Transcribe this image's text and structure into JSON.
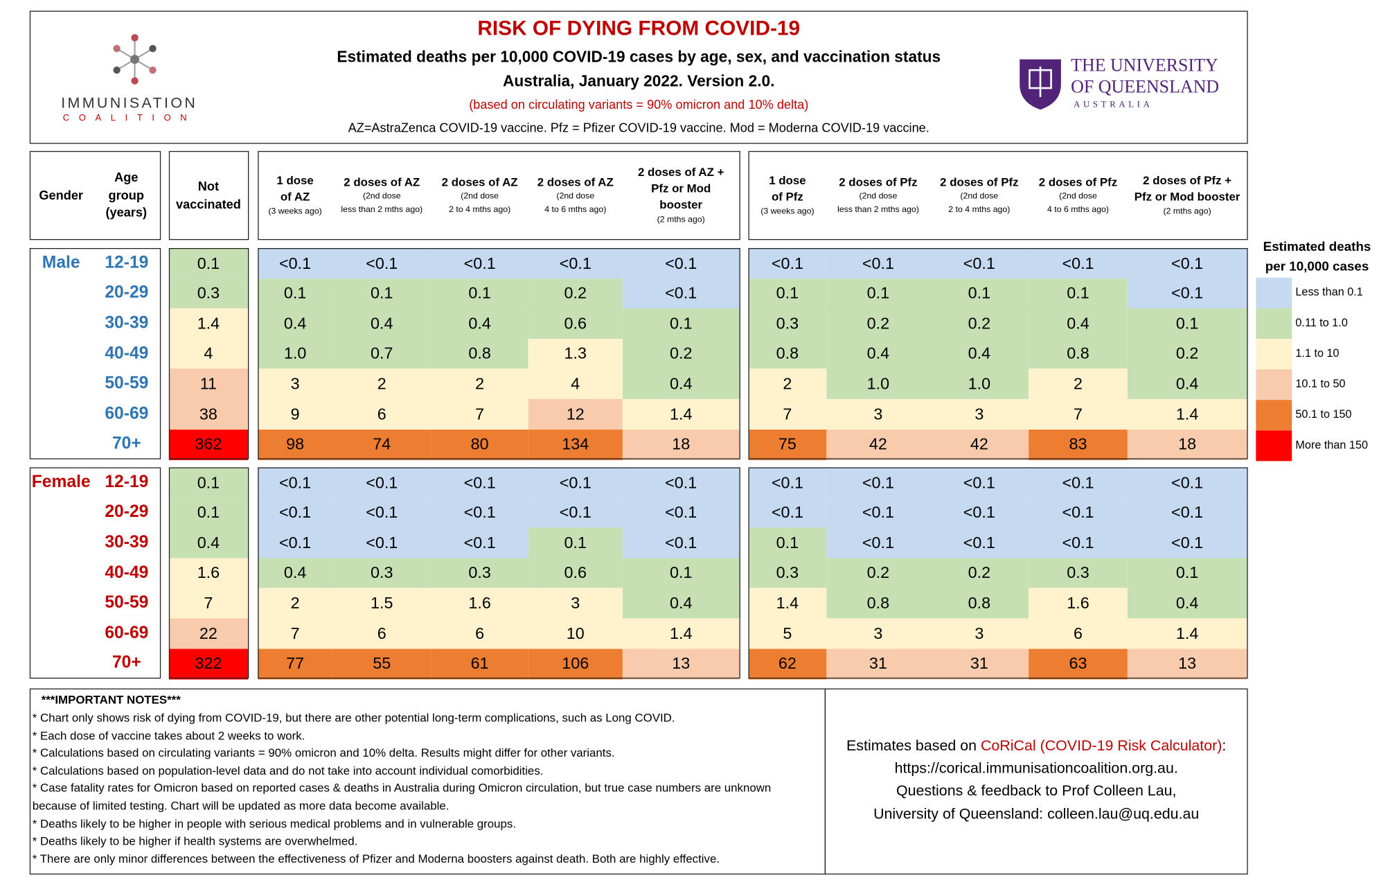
{
  "header": {
    "title": "RISK OF DYING FROM COVID-19",
    "subtitle": "Estimated deaths per 10,000 COVID-19 cases by age, sex, and vaccination status",
    "subtitle2": "Australia, January 2022.  Version 2.0.",
    "note": "(based on circulating variants = 90% omicron and 10% delta)",
    "abbreviations": "AZ=AstraZenca COVID-19 vaccine.  Pfz = Pfizer COVID-19 vaccine. Mod = Moderna COVID-19 vaccine.",
    "left_logo": {
      "name": "IMMUNISATION",
      "sub": "COALITION"
    },
    "right_logo": {
      "line1": "THE UNIVERSITY",
      "line2": "OF QUEENSLAND",
      "sub": "AUSTRALIA"
    }
  },
  "table": {
    "gender_header": "Gender",
    "age_header": [
      "Age",
      "group",
      "(years)"
    ],
    "unvax_header": [
      "Not",
      "vaccinated"
    ],
    "az_columns": [
      {
        "lines": [
          "1 dose",
          "of AZ"
        ],
        "sub": [
          "(3 weeks ago)"
        ]
      },
      {
        "lines": [
          "2 doses of AZ"
        ],
        "sub": [
          "(2nd dose",
          "less than 2 mths ago)"
        ]
      },
      {
        "lines": [
          "2 doses of AZ"
        ],
        "sub": [
          "(2nd dose",
          "2 to 4 mths ago)"
        ]
      },
      {
        "lines": [
          "2 doses of AZ"
        ],
        "sub": [
          "(2nd dose",
          "4 to 6 mths ago)"
        ]
      },
      {
        "lines": [
          "2 doses of AZ +",
          "Pfz or Mod",
          "booster"
        ],
        "sub": [
          "(2 mths ago)"
        ]
      }
    ],
    "pfz_columns": [
      {
        "lines": [
          "1 dose",
          "of Pfz"
        ],
        "sub": [
          "(3 weeks ago)"
        ]
      },
      {
        "lines": [
          "2 doses of Pfz"
        ],
        "sub": [
          "(2nd dose",
          "less than 2 mths ago)"
        ]
      },
      {
        "lines": [
          "2 doses of Pfz"
        ],
        "sub": [
          "(2nd dose",
          "2 to 4 mths ago)"
        ]
      },
      {
        "lines": [
          "2 doses of Pfz"
        ],
        "sub": [
          "(2nd dose",
          "4 to 6 mths ago)"
        ]
      },
      {
        "lines": [
          "2 doses of Pfz +",
          "Pfz or Mod booster"
        ],
        "sub": [
          "(2 mths ago)"
        ]
      }
    ],
    "groups": [
      {
        "gender": "Male",
        "color": "#2e75b6",
        "rows": [
          {
            "age": "12-19",
            "values": [
              "0.1",
              "<0.1",
              "<0.1",
              "<0.1",
              "<0.1",
              "<0.1",
              "<0.1",
              "<0.1",
              "<0.1",
              "<0.1",
              "<0.1"
            ],
            "colors": [
              "#c6e0b4",
              "#c5d9f1",
              "#c5d9f1",
              "#c5d9f1",
              "#c5d9f1",
              "#c5d9f1",
              "#c5d9f1",
              "#c5d9f1",
              "#c5d9f1",
              "#c5d9f1",
              "#c5d9f1"
            ]
          },
          {
            "age": "20-29",
            "values": [
              "0.3",
              "0.1",
              "0.1",
              "0.1",
              "0.2",
              "<0.1",
              "0.1",
              "0.1",
              "0.1",
              "0.1",
              "<0.1"
            ],
            "colors": [
              "#c6e0b4",
              "#c6e0b4",
              "#c6e0b4",
              "#c6e0b4",
              "#c6e0b4",
              "#c5d9f1",
              "#c6e0b4",
              "#c6e0b4",
              "#c6e0b4",
              "#c6e0b4",
              "#c5d9f1"
            ]
          },
          {
            "age": "30-39",
            "values": [
              "1.4",
              "0.4",
              "0.4",
              "0.4",
              "0.6",
              "0.1",
              "0.3",
              "0.2",
              "0.2",
              "0.4",
              "0.1"
            ],
            "colors": [
              "#fff2cc",
              "#c6e0b4",
              "#c6e0b4",
              "#c6e0b4",
              "#c6e0b4",
              "#c6e0b4",
              "#c6e0b4",
              "#c6e0b4",
              "#c6e0b4",
              "#c6e0b4",
              "#c6e0b4"
            ]
          },
          {
            "age": "40-49",
            "values": [
              "4",
              "1.0",
              "0.7",
              "0.8",
              "1.3",
              "0.2",
              "0.8",
              "0.4",
              "0.4",
              "0.8",
              "0.2"
            ],
            "colors": [
              "#fff2cc",
              "#c6e0b4",
              "#c6e0b4",
              "#c6e0b4",
              "#fff2cc",
              "#c6e0b4",
              "#c6e0b4",
              "#c6e0b4",
              "#c6e0b4",
              "#c6e0b4",
              "#c6e0b4"
            ]
          },
          {
            "age": "50-59",
            "values": [
              "11",
              "3",
              "2",
              "2",
              "4",
              "0.4",
              "2",
              "1.0",
              "1.0",
              "2",
              "0.4"
            ],
            "colors": [
              "#f8cbad",
              "#fff2cc",
              "#fff2cc",
              "#fff2cc",
              "#fff2cc",
              "#c6e0b4",
              "#fff2cc",
              "#c6e0b4",
              "#c6e0b4",
              "#fff2cc",
              "#c6e0b4"
            ]
          },
          {
            "age": "60-69",
            "values": [
              "38",
              "9",
              "6",
              "7",
              "12",
              "1.4",
              "7",
              "3",
              "3",
              "7",
              "1.4"
            ],
            "colors": [
              "#f8cbad",
              "#fff2cc",
              "#fff2cc",
              "#fff2cc",
              "#f8cbad",
              "#fff2cc",
              "#fff2cc",
              "#fff2cc",
              "#fff2cc",
              "#fff2cc",
              "#fff2cc"
            ]
          },
          {
            "age": "70+",
            "values": [
              "362",
              "98",
              "74",
              "80",
              "134",
              "18",
              "75",
              "42",
              "42",
              "83",
              "18"
            ],
            "colors": [
              "#ff0000",
              "#ed7d31",
              "#ed7d31",
              "#ed7d31",
              "#ed7d31",
              "#f8cbad",
              "#ed7d31",
              "#f8cbad",
              "#f8cbad",
              "#ed7d31",
              "#f8cbad"
            ]
          }
        ]
      },
      {
        "gender": "Female",
        "color": "#c00000",
        "rows": [
          {
            "age": "12-19",
            "values": [
              "0.1",
              "<0.1",
              "<0.1",
              "<0.1",
              "<0.1",
              "<0.1",
              "<0.1",
              "<0.1",
              "<0.1",
              "<0.1",
              "<0.1"
            ],
            "colors": [
              "#c6e0b4",
              "#c5d9f1",
              "#c5d9f1",
              "#c5d9f1",
              "#c5d9f1",
              "#c5d9f1",
              "#c5d9f1",
              "#c5d9f1",
              "#c5d9f1",
              "#c5d9f1",
              "#c5d9f1"
            ]
          },
          {
            "age": "20-29",
            "values": [
              "0.1",
              "<0.1",
              "<0.1",
              "<0.1",
              "<0.1",
              "<0.1",
              "<0.1",
              "<0.1",
              "<0.1",
              "<0.1",
              "<0.1"
            ],
            "colors": [
              "#c6e0b4",
              "#c5d9f1",
              "#c5d9f1",
              "#c5d9f1",
              "#c5d9f1",
              "#c5d9f1",
              "#c5d9f1",
              "#c5d9f1",
              "#c5d9f1",
              "#c5d9f1",
              "#c5d9f1"
            ]
          },
          {
            "age": "30-39",
            "values": [
              "0.4",
              "<0.1",
              "<0.1",
              "<0.1",
              "0.1",
              "<0.1",
              "0.1",
              "<0.1",
              "<0.1",
              "<0.1",
              "<0.1"
            ],
            "colors": [
              "#c6e0b4",
              "#c5d9f1",
              "#c5d9f1",
              "#c5d9f1",
              "#c6e0b4",
              "#c5d9f1",
              "#c6e0b4",
              "#c5d9f1",
              "#c5d9f1",
              "#c5d9f1",
              "#c5d9f1"
            ]
          },
          {
            "age": "40-49",
            "values": [
              "1.6",
              "0.4",
              "0.3",
              "0.3",
              "0.6",
              "0.1",
              "0.3",
              "0.2",
              "0.2",
              "0.3",
              "0.1"
            ],
            "colors": [
              "#fff2cc",
              "#c6e0b4",
              "#c6e0b4",
              "#c6e0b4",
              "#c6e0b4",
              "#c6e0b4",
              "#c6e0b4",
              "#c6e0b4",
              "#c6e0b4",
              "#c6e0b4",
              "#c6e0b4"
            ]
          },
          {
            "age": "50-59",
            "values": [
              "7",
              "2",
              "1.5",
              "1.6",
              "3",
              "0.4",
              "1.4",
              "0.8",
              "0.8",
              "1.6",
              "0.4"
            ],
            "colors": [
              "#fff2cc",
              "#fff2cc",
              "#fff2cc",
              "#fff2cc",
              "#fff2cc",
              "#c6e0b4",
              "#fff2cc",
              "#c6e0b4",
              "#c6e0b4",
              "#fff2cc",
              "#c6e0b4"
            ]
          },
          {
            "age": "60-69",
            "values": [
              "22",
              "7",
              "6",
              "6",
              "10",
              "1.4",
              "5",
              "3",
              "3",
              "6",
              "1.4"
            ],
            "colors": [
              "#f8cbad",
              "#fff2cc",
              "#fff2cc",
              "#fff2cc",
              "#fff2cc",
              "#fff2cc",
              "#fff2cc",
              "#fff2cc",
              "#fff2cc",
              "#fff2cc",
              "#fff2cc"
            ]
          },
          {
            "age": "70+",
            "values": [
              "322",
              "77",
              "55",
              "61",
              "106",
              "13",
              "62",
              "31",
              "31",
              "63",
              "13"
            ],
            "colors": [
              "#ff0000",
              "#ed7d31",
              "#ed7d31",
              "#ed7d31",
              "#ed7d31",
              "#f8cbad",
              "#ed7d31",
              "#f8cbad",
              "#f8cbad",
              "#ed7d31",
              "#f8cbad"
            ]
          }
        ]
      }
    ]
  },
  "legend": {
    "title": [
      "Estimated deaths",
      "per 10,000 cases"
    ],
    "items": [
      {
        "label": "Less than 0.1",
        "color": "#c5d9f1"
      },
      {
        "label": "0.11 to 1.0",
        "color": "#c6e0b4"
      },
      {
        "label": "1.1 to 10",
        "color": "#fff2cc"
      },
      {
        "label": "10.1 to 50",
        "color": "#f8cbad"
      },
      {
        "label": "50.1 to 150",
        "color": "#ed7d31"
      },
      {
        "label": "More than 150",
        "color": "#ff0000"
      }
    ]
  },
  "notes": {
    "title": "***IMPORTANT NOTES***",
    "lines": [
      "* Chart only shows risk of dying from COVID-19, but there are other potential long-term complications, such as Long COVID.",
      "* Each dose of vaccine takes about 2 weeks to work.",
      "* Calculations based on circulating variants = 90% omicron and 10% delta. Results might differ for other variants.",
      "* Calculations based on population-level data and do not take into account individual comorbidities.",
      "* Case fatality rates for Omicron based on reported cases & deaths in Australia during Omicron circulation, but true case numbers are unknown",
      "because of limited testing.  Chart will be updated as more data become available.",
      "* Deaths likely to be higher in people with serious medical problems and in vulnerable groups.",
      "* Deaths likely to be higher if health systems are overwhelmed.",
      "* There are only minor differences between the effectiveness of Pfizer and Moderna boosters against death. Both are highly effective."
    ]
  },
  "footer": {
    "line1_prefix": "Estimates based on ",
    "line1_link": "CoRiCal (COVID-19 Risk Calculator)",
    "line1_suffix": ":",
    "line2": "https://corical.immunisationcoalition.org.au.",
    "line3": "Questions & feedback to Prof Colleen Lau,",
    "line4": "University of Queensland: colleen.lau@uq.edu.au"
  }
}
